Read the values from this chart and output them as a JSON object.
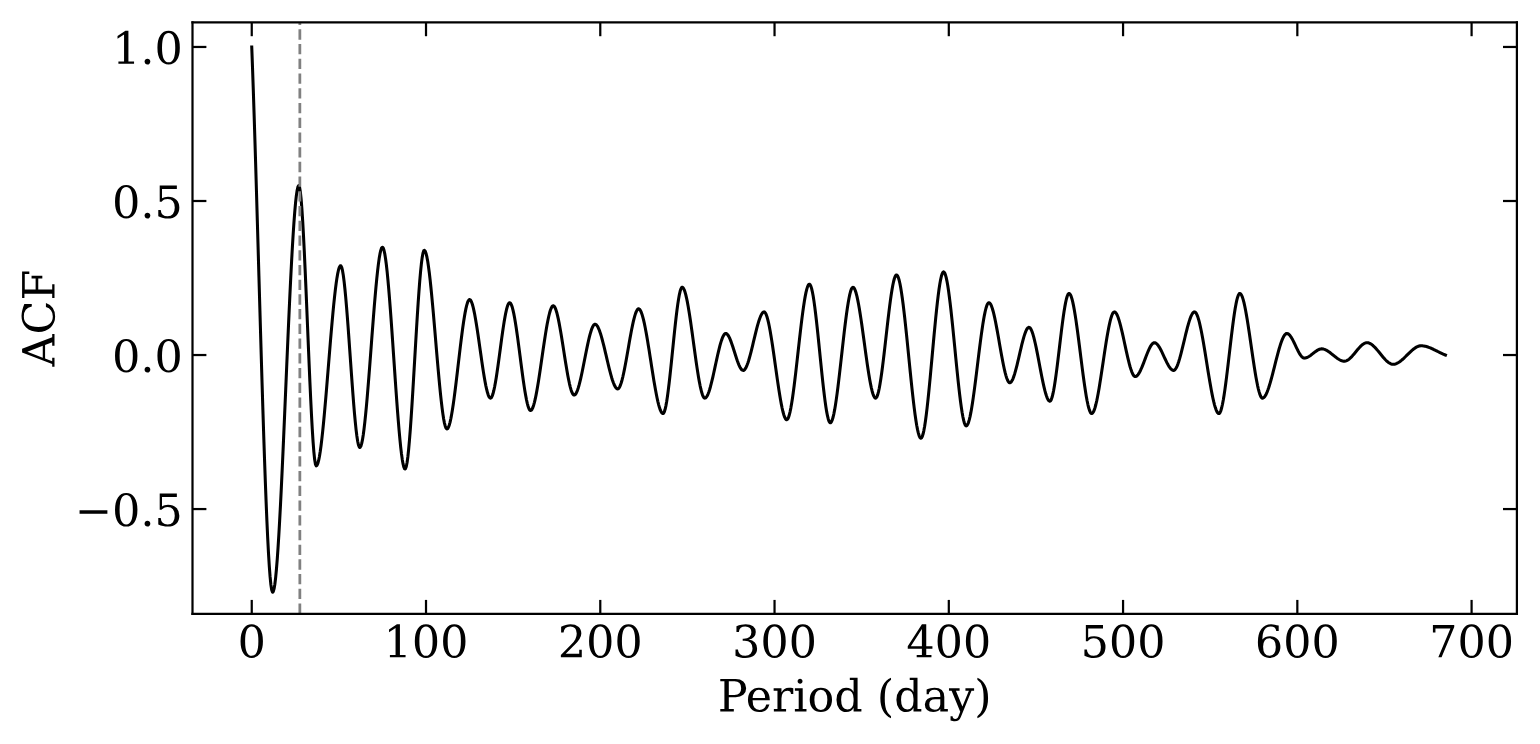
{
  "chart_data": {
    "type": "line",
    "xlabel": "Period (day)",
    "ylabel": "ACF",
    "x": [
      0,
      12,
      27,
      37,
      51,
      62,
      75,
      88,
      99,
      112,
      125,
      137,
      148,
      160,
      173,
      185,
      197,
      210,
      222,
      236,
      247,
      260,
      272,
      282,
      294,
      307,
      320,
      332,
      345,
      358,
      370,
      384,
      397,
      410,
      423,
      435,
      446,
      458,
      469,
      482,
      495,
      507,
      518,
      529,
      541,
      555,
      567,
      580,
      594,
      604,
      614,
      627,
      640,
      655,
      671,
      685
    ],
    "series": [
      {
        "color": "#000000",
        "values": [
          1.0,
          -0.77,
          0.55,
          -0.36,
          0.29,
          -0.3,
          0.35,
          -0.37,
          0.34,
          -0.24,
          0.18,
          -0.14,
          0.17,
          -0.18,
          0.16,
          -0.13,
          0.1,
          -0.11,
          0.15,
          -0.19,
          0.22,
          -0.14,
          0.07,
          -0.05,
          0.14,
          -0.21,
          0.23,
          -0.22,
          0.22,
          -0.14,
          0.26,
          -0.27,
          0.27,
          -0.23,
          0.17,
          -0.09,
          0.09,
          -0.15,
          0.2,
          -0.19,
          0.14,
          -0.07,
          0.04,
          -0.05,
          0.14,
          -0.19,
          0.2,
          -0.14,
          0.07,
          -0.01,
          0.02,
          -0.02,
          0.04,
          -0.03,
          0.03,
          0.0
        ]
      }
    ],
    "xlim": [
      -34,
      726
    ],
    "ylim": [
      -0.84,
      1.08
    ],
    "xticks": [
      0,
      100,
      200,
      300,
      400,
      500,
      600,
      700
    ],
    "yticks": [
      {
        "value": -0.5,
        "label": "−0.5"
      },
      {
        "value": 0.0,
        "label": "0.0"
      },
      {
        "value": 0.5,
        "label": "0.5"
      },
      {
        "value": 1.0,
        "label": "1.0"
      }
    ],
    "ref_lines": [
      {
        "axis": "x",
        "value": 27.6,
        "color": "#808080",
        "line_style": "dashed"
      }
    ],
    "grid": false,
    "marker": "none",
    "line_style": "solid"
  }
}
